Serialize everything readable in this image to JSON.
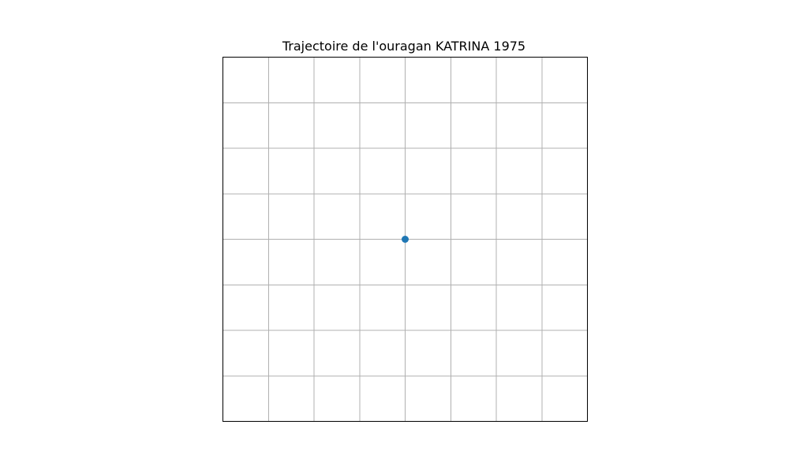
{
  "chart_data": {
    "type": "scatter",
    "title": "Trajectoire de l'ouragan KATRINA 1975",
    "xlabel": "",
    "ylabel": "",
    "xlim": [
      0,
      8
    ],
    "ylim": [
      0,
      8
    ],
    "grid": true,
    "axis_ticks_visible": false,
    "series": [
      {
        "color": "#1f77b4",
        "x": [
          4
        ],
        "y": [
          4
        ]
      }
    ]
  }
}
